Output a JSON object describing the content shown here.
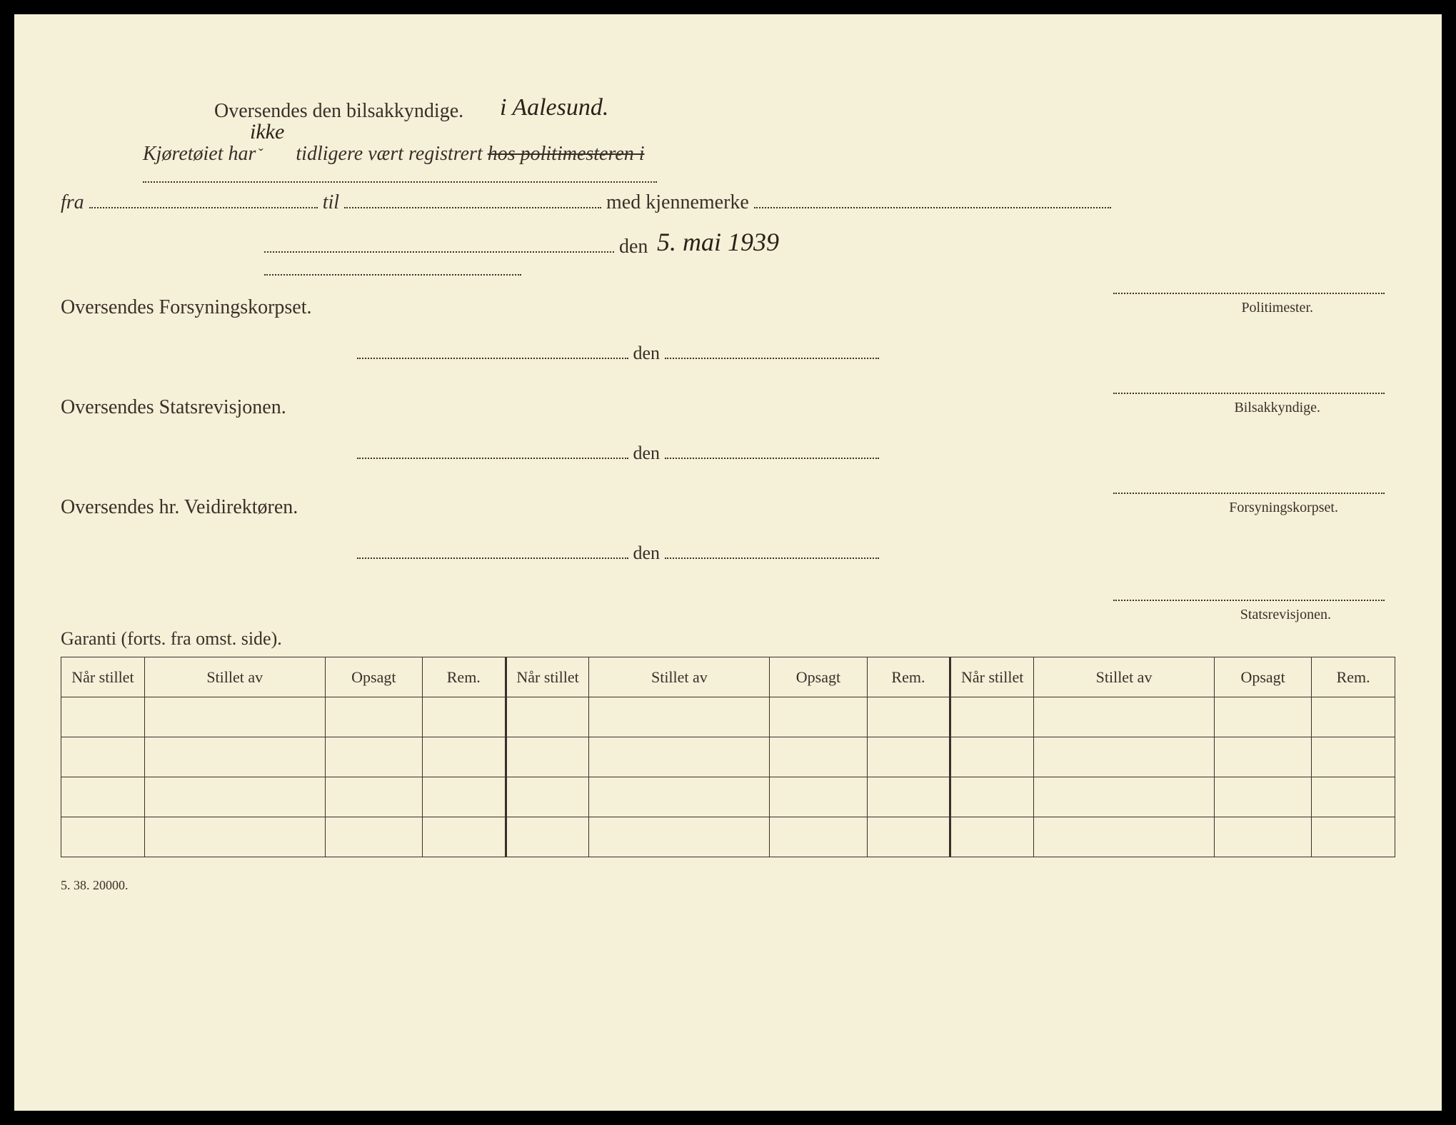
{
  "header": {
    "line1_printed": "Oversendes den bilsakkyndige.",
    "line1_handwritten": "i Aalesund.",
    "ikke_insert": "ikke",
    "caret_mark": "ˇ",
    "line2_prefix": "Kjøretøiet har",
    "line2_mid": "tidligere vært registrert",
    "line2_struck": "hos politimesteren i",
    "fra_label": "fra",
    "til_label": "til",
    "med_label": "med kjennemerke",
    "den_label": "den",
    "date_handwritten": "5. mai 1939"
  },
  "sections": [
    {
      "title": "Oversendes Forsyningskorpset.",
      "sig_label": "Politimester."
    },
    {
      "title": "Oversendes Statsrevisjonen.",
      "sig_label": "Bilsakkyndige."
    },
    {
      "title": "Oversendes hr. Veidirektøren.",
      "sig_label": "Forsyningskorpset."
    }
  ],
  "final_sig_label": "Statsrevisjonen.",
  "garanti_label": "Garanti (forts. fra omst. side).",
  "table": {
    "headers": {
      "nar_stillet": "Når stillet",
      "stillet_av": "Stillet av",
      "opsagt": "Opsagt",
      "rem": "Rem."
    },
    "repeat_count": 3,
    "row_count": 4
  },
  "form_code": "5. 38. 20000.",
  "colors": {
    "paper": "#f5f0d8",
    "ink": "#3a2f28",
    "handwriting": "#2a2218"
  }
}
